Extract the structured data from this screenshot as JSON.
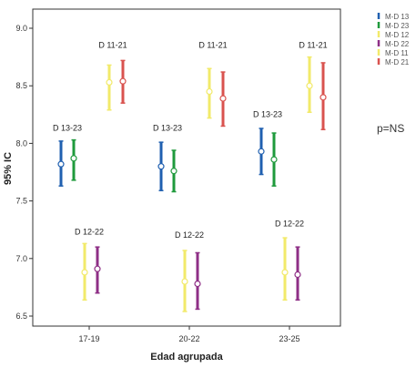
{
  "chart_data": {
    "type": "errorbar",
    "xlabel": "Edad agrupada",
    "ylabel": "95% IC",
    "categories": [
      "17-19",
      "20-22",
      "23-25"
    ],
    "yticks": [
      "6.5",
      "7.0",
      "7.5",
      "8.0",
      "8.5",
      "9.0"
    ],
    "ylim": [
      6.5,
      9.0
    ],
    "legend_position": "top-right",
    "grid": false,
    "p_value_text": "p=NS",
    "series": [
      {
        "name": "M-D 13",
        "color": "#2060b0",
        "group": "D 13-23",
        "mean": [
          7.82,
          7.8,
          7.93
        ],
        "lower": [
          7.63,
          7.59,
          7.73
        ],
        "upper": [
          8.02,
          8.01,
          8.13
        ]
      },
      {
        "name": "M-D 23",
        "color": "#1f9a3c",
        "group": "D 13-23",
        "mean": [
          7.87,
          7.76,
          7.86
        ],
        "lower": [
          7.68,
          7.58,
          7.63
        ],
        "upper": [
          8.03,
          7.94,
          8.09
        ]
      },
      {
        "name": "M-D 12",
        "color": "#f2ea6a",
        "group": "D 12-22",
        "mean": [
          6.88,
          6.8,
          6.88
        ],
        "lower": [
          6.64,
          6.54,
          6.64
        ],
        "upper": [
          7.13,
          7.07,
          7.18
        ]
      },
      {
        "name": "M-D 22",
        "color": "#8e2f86",
        "group": "D 12-22",
        "mean": [
          6.91,
          6.78,
          6.86
        ],
        "lower": [
          6.7,
          6.56,
          6.64
        ],
        "upper": [
          7.1,
          7.05,
          7.1
        ]
      },
      {
        "name": "M-D 11",
        "color": "#f2ea6a",
        "group": "D 11-21",
        "mean": [
          8.53,
          8.45,
          8.5
        ],
        "lower": [
          8.29,
          8.22,
          8.27
        ],
        "upper": [
          8.68,
          8.65,
          8.75
        ]
      },
      {
        "name": "M-D 21",
        "color": "#d9534f",
        "group": "D 11-21",
        "mean": [
          8.54,
          8.39,
          8.4
        ],
        "lower": [
          8.35,
          8.15,
          8.12
        ],
        "upper": [
          8.72,
          8.62,
          8.7
        ]
      }
    ],
    "annotations": [
      {
        "text": "D 11-21",
        "category": 0,
        "y": 8.83
      },
      {
        "text": "D 11-21",
        "category": 1,
        "y": 8.83
      },
      {
        "text": "D 11-21",
        "category": 2,
        "y": 8.83
      },
      {
        "text": "D 13-23",
        "category": 0,
        "y": 8.11
      },
      {
        "text": "D 13-23",
        "category": 1,
        "y": 8.11
      },
      {
        "text": "D 13-23",
        "category": 2,
        "y": 8.23
      },
      {
        "text": "D 12-22",
        "category": 0,
        "y": 7.21
      },
      {
        "text": "D 12-22",
        "category": 1,
        "y": 7.18
      },
      {
        "text": "D 12-22",
        "category": 2,
        "y": 7.28
      }
    ]
  }
}
